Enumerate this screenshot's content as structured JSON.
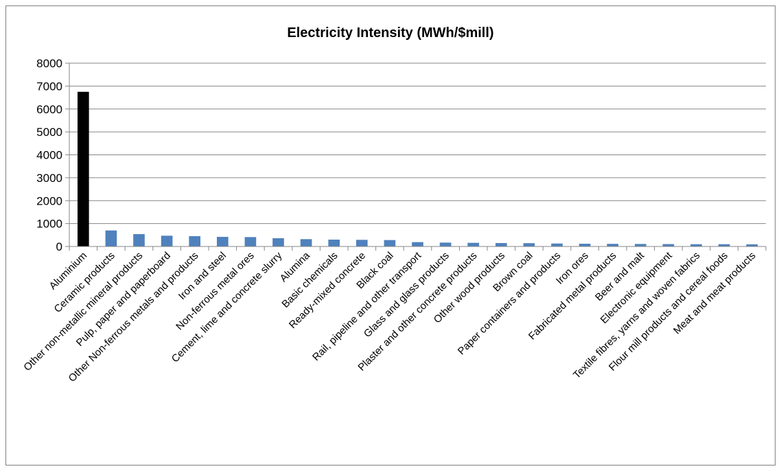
{
  "chart_data": {
    "type": "bar",
    "title": "Electricity Intensity (MWh/$mill)",
    "xlabel": "",
    "ylabel": "",
    "ylim": [
      0,
      8000
    ],
    "yticks": [
      0,
      1000,
      2000,
      3000,
      4000,
      5000,
      6000,
      7000,
      8000
    ],
    "grid": true,
    "legend": "none",
    "categories": [
      "Aluminium",
      "Ceramic products",
      "Other non-metallic mineral products",
      "Pulp, paper and paperboard",
      "Other Non-ferrous metals and products",
      "Iron and steel",
      "Non-ferrous metal ores",
      "Cement, lime and concrete slurry",
      "Alumina",
      "Basic chemicals",
      "Ready-mixed concrete",
      "Black coal",
      "Rail, pipeline and other transport",
      "Glass and glass products",
      "Plaster and other concrete products",
      "Other wood products",
      "Brown coal",
      "Paper containers and products",
      "Iron ores",
      "Fabricated metal products",
      "Beer and malt",
      "Electronic equipment",
      "Textile fibres, yarns and woven fabrics",
      "Flour mill products and cereal foods",
      "Meat and meat products"
    ],
    "values": [
      6750,
      700,
      540,
      470,
      450,
      420,
      410,
      360,
      320,
      300,
      290,
      280,
      190,
      170,
      160,
      150,
      145,
      130,
      120,
      115,
      110,
      105,
      100,
      100,
      95
    ],
    "colors": {
      "highlight": "#000000",
      "bar": "#4f81bd",
      "grid": "#868686",
      "axis": "#868686"
    }
  }
}
